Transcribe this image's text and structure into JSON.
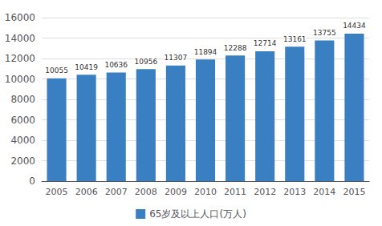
{
  "chart_data": {
    "type": "bar",
    "categories": [
      "2005",
      "2006",
      "2007",
      "2008",
      "2009",
      "2010",
      "2011",
      "2012",
      "2013",
      "2014",
      "2015"
    ],
    "series": [
      {
        "name": "65岁及以上人口(万人)",
        "color": "#3A7FC1",
        "values": [
          10055,
          10419,
          10636,
          10956,
          11307,
          11894,
          12288,
          12714,
          13161,
          13755,
          14434
        ]
      }
    ],
    "ylim": [
      0,
      16000
    ],
    "yticks": [
      0,
      2000,
      4000,
      6000,
      8000,
      10000,
      12000,
      14000,
      16000
    ],
    "grid": true,
    "data_labels": true,
    "legend": "bottom"
  }
}
